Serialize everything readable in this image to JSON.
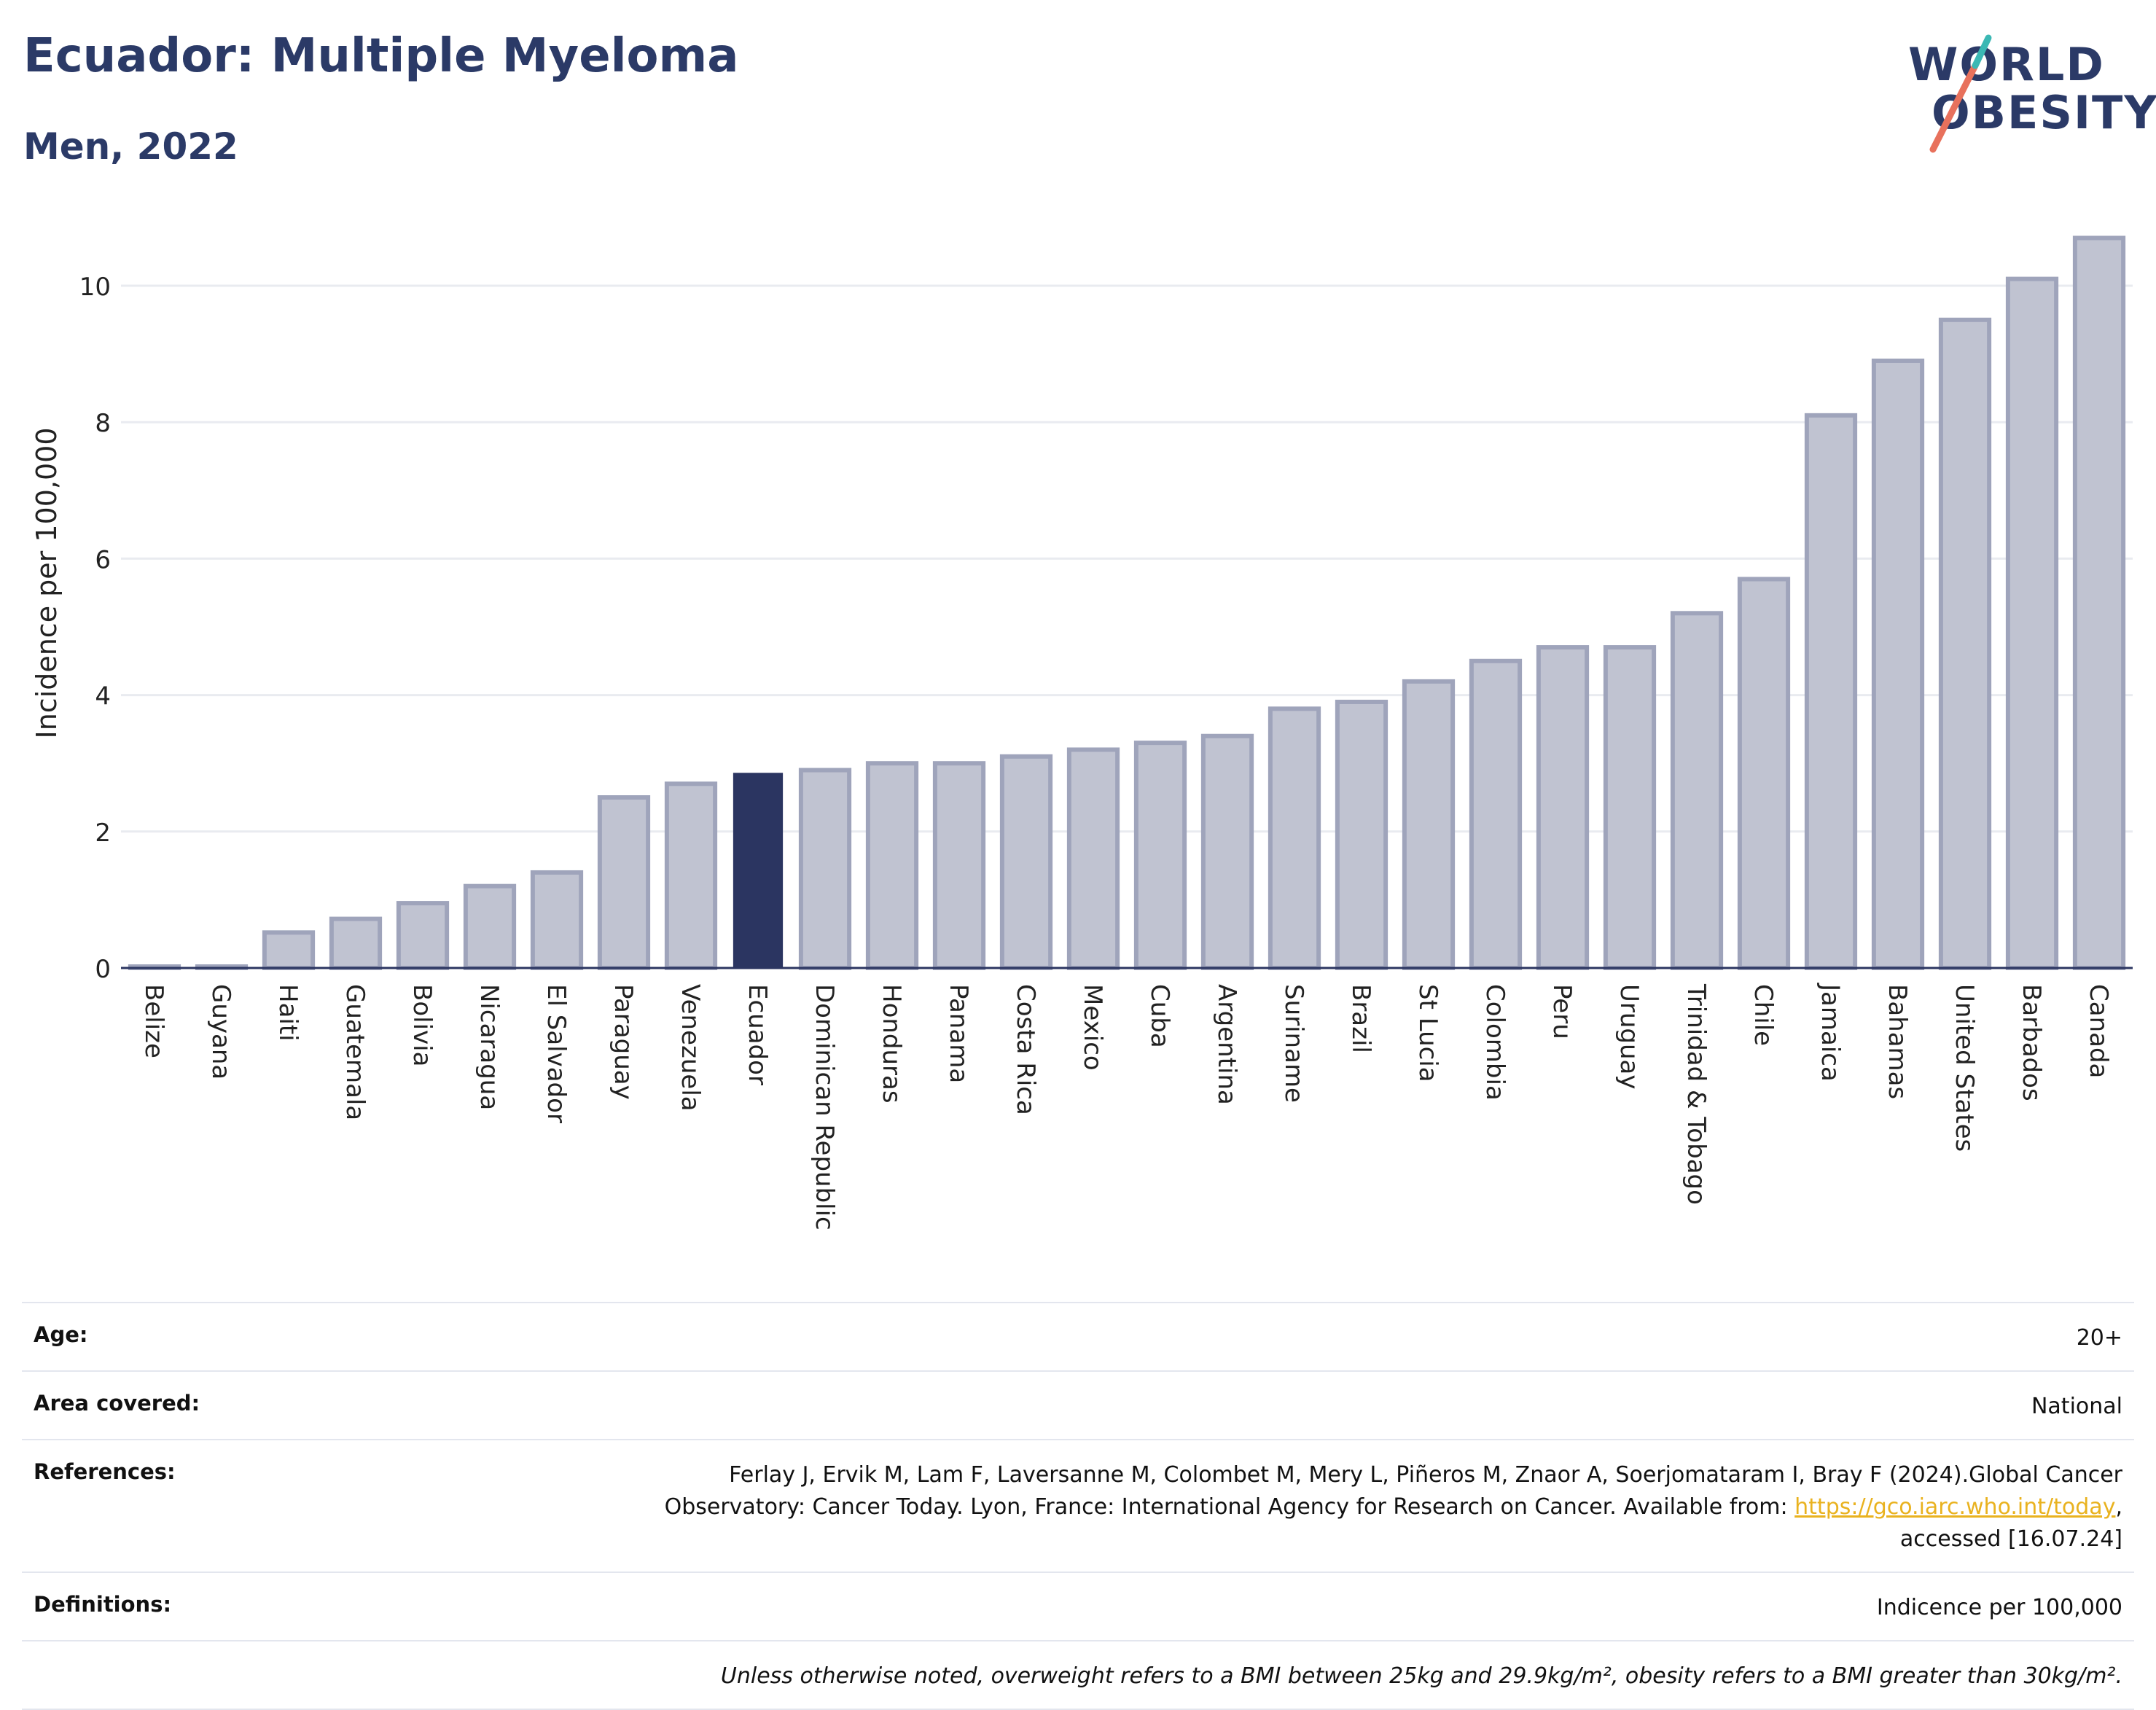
{
  "header": {
    "title": "Ecuador: Multiple Myeloma",
    "subtitle": "Men, 2022"
  },
  "logo": {
    "line1": "WORLD",
    "line2": "OBESITY",
    "accent_colors": [
      "#e8715c",
      "#3bb8b4"
    ]
  },
  "colors": {
    "bar": "#c0c3d1",
    "bar_border": "#9fa4bb",
    "highlight": "#2b3561",
    "title": "#2b3a67",
    "grid": "#e9ebf0",
    "axis": "#2b3561"
  },
  "chart_data": {
    "type": "bar",
    "title": "Ecuador: Multiple Myeloma",
    "subtitle": "Men, 2022",
    "xlabel": "",
    "ylabel": "Incidence per 100,000",
    "ylim": [
      0,
      11
    ],
    "yticks": [
      0,
      2,
      4,
      6,
      8,
      10
    ],
    "grid": true,
    "highlight": "Ecuador",
    "categories": [
      "Belize",
      "Guyana",
      "Haiti",
      "Guatemala",
      "Bolivia",
      "Nicaragua",
      "El Salvador",
      "Paraguay",
      "Venezuela",
      "Ecuador",
      "Dominican Republic",
      "Honduras",
      "Panama",
      "Costa Rica",
      "Mexico",
      "Cuba",
      "Argentina",
      "Suriname",
      "Brazil",
      "St Lucia",
      "Colombia",
      "Peru",
      "Uruguay",
      "Trinidad & Tobago",
      "Chile",
      "Jamaica",
      "Bahamas",
      "United States",
      "Barbados",
      "Canada"
    ],
    "values": [
      0.02,
      0.02,
      0.52,
      0.72,
      0.95,
      1.2,
      1.4,
      2.5,
      2.7,
      2.85,
      2.9,
      3.0,
      3.0,
      3.1,
      3.2,
      3.3,
      3.4,
      3.8,
      3.9,
      4.2,
      4.5,
      4.7,
      4.7,
      5.2,
      5.7,
      8.1,
      8.9,
      9.5,
      10.1,
      10.7
    ]
  },
  "meta": {
    "age_label": "Age:",
    "age_value": "20+",
    "area_label": "Area covered:",
    "area_value": "National",
    "references_label": "References:",
    "references_line1": "Ferlay J, Ervik M, Lam F, Laversanne M, Colombet M, Mery L, Piñeros M, Znaor A, Soerjomataram I, Bray F (2024).Global Cancer",
    "references_line2_pre": "Observatory: Cancer Today. Lyon, France: International Agency for Research on Cancer. Available from: ",
    "references_link": "https://gco.iarc.who.int/today",
    "references_line2_post": ",",
    "references_line3": "accessed [16.07.24]",
    "definitions_label": "Definitions:",
    "definitions_value": "Indicence per 100,000",
    "note": "Unless otherwise noted, overweight refers to a BMI between 25kg and 29.9kg/m², obesity refers to a BMI greater than 30kg/m²."
  }
}
